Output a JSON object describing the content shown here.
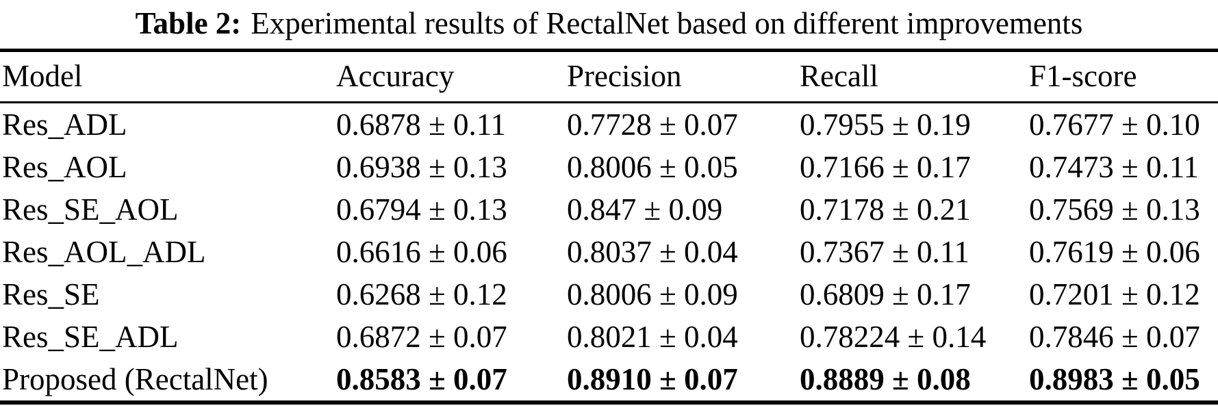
{
  "caption": {
    "label": "Table 2:",
    "text": "Experimental results of RectalNet based on different improvements"
  },
  "table": {
    "columns": [
      "Model",
      "Accuracy",
      "Precision",
      "Recall",
      "F1-score"
    ],
    "rows": [
      {
        "model": "Res_ADL",
        "accuracy": "0.6878 ± 0.11",
        "precision": "0.7728 ± 0.07",
        "recall": "0.7955 ± 0.19",
        "f1": "0.7677 ± 0.10",
        "bold": false
      },
      {
        "model": "Res_AOL",
        "accuracy": "0.6938 ± 0.13",
        "precision": "0.8006 ± 0.05",
        "recall": "0.7166 ± 0.17",
        "f1": "0.7473 ± 0.11",
        "bold": false
      },
      {
        "model": "Res_SE_AOL",
        "accuracy": "0.6794 ± 0.13",
        "precision": "0.847 ± 0.09",
        "recall": "0.7178 ± 0.21",
        "f1": "0.7569 ± 0.13",
        "bold": false
      },
      {
        "model": "Res_AOL_ADL",
        "accuracy": "0.6616 ± 0.06",
        "precision": "0.8037 ± 0.04",
        "recall": "0.7367 ± 0.11",
        "f1": "0.7619 ± 0.06",
        "bold": false
      },
      {
        "model": "Res_SE",
        "accuracy": "0.6268 ± 0.12",
        "precision": "0.8006 ± 0.09",
        "recall": "0.6809 ± 0.17",
        "f1": "0.7201 ± 0.12",
        "bold": false
      },
      {
        "model": "Res_SE_ADL",
        "accuracy": "0.6872 ± 0.07",
        "precision": "0.8021 ± 0.04",
        "recall": "0.78224 ± 0.14",
        "f1": "0.7846 ± 0.07",
        "bold": false
      },
      {
        "model": "Proposed (RectalNet)",
        "accuracy": "0.8583 ± 0.07",
        "precision": "0.8910 ± 0.07",
        "recall": "0.8889 ± 0.08",
        "f1": "0.8983 ± 0.05",
        "bold": true
      }
    ]
  },
  "colors": {
    "text": "#000000",
    "background": "#ffffff",
    "rule": "#000000"
  }
}
